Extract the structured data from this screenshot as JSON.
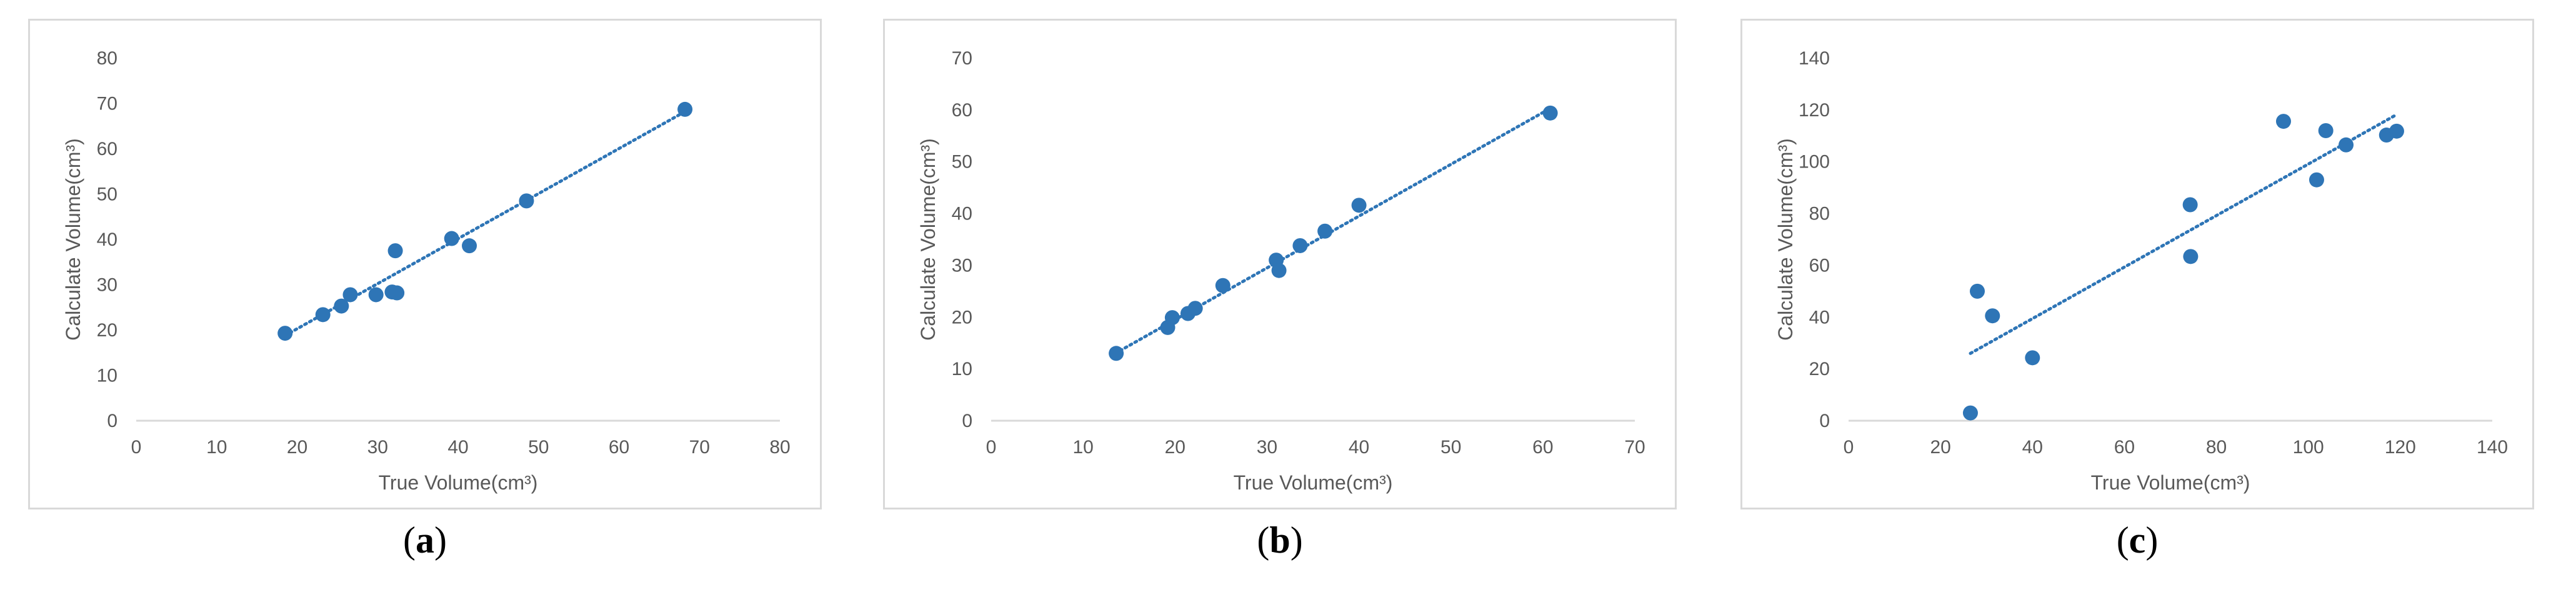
{
  "colors": {
    "point": "#2e75b6",
    "trend": "#2e75b6",
    "axis": "#d9d9d9",
    "text": "#595959"
  },
  "chart_data": [
    {
      "type": "scatter",
      "caption_letter": "a",
      "xlabel": "True Volume(cm³)",
      "ylabel": "Calculate Volume(cm³)",
      "xlim": [
        0,
        80
      ],
      "ylim": [
        0,
        80
      ],
      "xticks": [
        0,
        10,
        20,
        30,
        40,
        50,
        60,
        70,
        80
      ],
      "yticks": [
        0,
        10,
        20,
        30,
        40,
        50,
        60,
        70,
        80
      ],
      "grid": false,
      "trendline": {
        "style": "dotted",
        "from": [
          18.5,
          18.8
        ],
        "to": [
          68,
          68
        ]
      },
      "points": [
        {
          "x": 18.5,
          "y": 19.3
        },
        {
          "x": 23.2,
          "y": 23.4
        },
        {
          "x": 25.5,
          "y": 25.3
        },
        {
          "x": 26.6,
          "y": 27.8
        },
        {
          "x": 29.8,
          "y": 27.8
        },
        {
          "x": 31.8,
          "y": 28.4
        },
        {
          "x": 32.4,
          "y": 28.2
        },
        {
          "x": 32.2,
          "y": 37.5
        },
        {
          "x": 39.2,
          "y": 40.2
        },
        {
          "x": 41.4,
          "y": 38.6
        },
        {
          "x": 48.5,
          "y": 48.5
        },
        {
          "x": 68.2,
          "y": 68.7
        }
      ]
    },
    {
      "type": "scatter",
      "caption_letter": "b",
      "xlabel": "True Volume(cm³)",
      "ylabel": "Calculate Volume(cm³)",
      "xlim": [
        0,
        70
      ],
      "ylim": [
        0,
        70
      ],
      "xticks": [
        0,
        10,
        20,
        30,
        40,
        50,
        60,
        70
      ],
      "yticks": [
        0,
        10,
        20,
        30,
        40,
        50,
        60,
        70
      ],
      "grid": false,
      "trendline": {
        "style": "dotted",
        "from": [
          13.5,
          13
        ],
        "to": [
          60.5,
          60
        ]
      },
      "points": [
        {
          "x": 13.6,
          "y": 13.0
        },
        {
          "x": 19.2,
          "y": 18.0
        },
        {
          "x": 19.7,
          "y": 19.9
        },
        {
          "x": 21.4,
          "y": 20.7
        },
        {
          "x": 22.2,
          "y": 21.7
        },
        {
          "x": 25.2,
          "y": 26.1
        },
        {
          "x": 31.0,
          "y": 31.0
        },
        {
          "x": 31.3,
          "y": 29.0
        },
        {
          "x": 33.6,
          "y": 33.8
        },
        {
          "x": 36.3,
          "y": 36.6
        },
        {
          "x": 40.0,
          "y": 41.6
        },
        {
          "x": 60.8,
          "y": 59.4
        }
      ]
    },
    {
      "type": "scatter",
      "caption_letter": "c",
      "xlabel": "True Volume(cm³)",
      "ylabel": "Calculate Volume(cm³)",
      "xlim": [
        0,
        140
      ],
      "ylim": [
        0,
        140
      ],
      "xticks": [
        0,
        20,
        40,
        60,
        80,
        100,
        120,
        140
      ],
      "yticks": [
        0,
        20,
        40,
        60,
        80,
        100,
        120,
        140
      ],
      "grid": false,
      "trendline": {
        "style": "dotted",
        "from": [
          26.5,
          26
        ],
        "to": [
          119,
          118
        ]
      },
      "points": [
        {
          "x": 26.5,
          "y": 3.0
        },
        {
          "x": 28.0,
          "y": 50.0
        },
        {
          "x": 31.3,
          "y": 40.5
        },
        {
          "x": 40.0,
          "y": 24.3
        },
        {
          "x": 74.3,
          "y": 83.4
        },
        {
          "x": 74.4,
          "y": 63.4
        },
        {
          "x": 94.6,
          "y": 115.6
        },
        {
          "x": 101.8,
          "y": 93.0
        },
        {
          "x": 103.8,
          "y": 112.0
        },
        {
          "x": 108.2,
          "y": 106.5
        },
        {
          "x": 117.0,
          "y": 110.3
        },
        {
          "x": 119.2,
          "y": 111.8
        }
      ]
    }
  ]
}
